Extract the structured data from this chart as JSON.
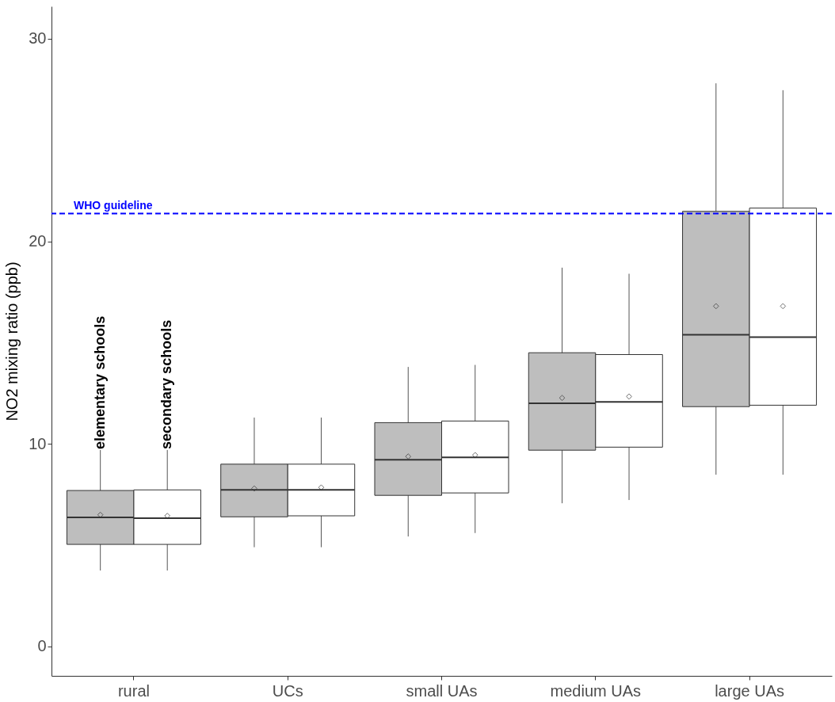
{
  "chart_data": {
    "type": "box",
    "ylabel": "NO2 mixing ratio (ppb)",
    "categories": [
      "rural",
      "UCs",
      "small UAs",
      "medium UAs",
      "large UAs"
    ],
    "ylim": [
      -1.45,
      31.6
    ],
    "yticks": [
      0,
      10,
      20,
      30
    ],
    "grid": false,
    "legend": false,
    "marker": "diamond",
    "series": [
      {
        "name": "elementary schools",
        "color": "#bebebe",
        "boxes": [
          {
            "low": 3.75,
            "q1": 5.04,
            "median": 6.37,
            "q3": 7.7,
            "high": 9.7,
            "mean": 6.5
          },
          {
            "low": 4.9,
            "q1": 6.4,
            "median": 7.73,
            "q3": 9.0,
            "high": 11.3,
            "mean": 7.8
          },
          {
            "low": 5.43,
            "q1": 7.46,
            "median": 9.22,
            "q3": 11.05,
            "high": 13.8,
            "mean": 9.38
          },
          {
            "low": 7.07,
            "q1": 9.69,
            "median": 12.0,
            "q3": 14.5,
            "high": 18.7,
            "mean": 12.27
          },
          {
            "low": 8.48,
            "q1": 11.84,
            "median": 15.39,
            "q3": 21.48,
            "high": 27.8,
            "mean": 16.8
          }
        ]
      },
      {
        "name": "secondary schools",
        "color": "#ffffff",
        "boxes": [
          {
            "low": 3.75,
            "q1": 5.04,
            "median": 6.33,
            "q3": 7.73,
            "high": 9.7,
            "mean": 6.45
          },
          {
            "low": 4.9,
            "q1": 6.45,
            "median": 7.73,
            "q3": 9.0,
            "high": 11.3,
            "mean": 7.85
          },
          {
            "low": 5.6,
            "q1": 7.58,
            "median": 9.34,
            "q3": 11.13,
            "high": 13.9,
            "mean": 9.45
          },
          {
            "low": 7.23,
            "q1": 9.84,
            "median": 12.07,
            "q3": 14.41,
            "high": 18.4,
            "mean": 12.34
          },
          {
            "low": 8.48,
            "q1": 11.91,
            "median": 15.27,
            "q3": 21.64,
            "high": 27.46,
            "mean": 16.8
          }
        ]
      }
    ],
    "ref_lines": [
      {
        "axis": "y",
        "value": 21.37,
        "label": "WHO guideline",
        "color": "#0000ff",
        "line_style": "dashed"
      }
    ]
  }
}
